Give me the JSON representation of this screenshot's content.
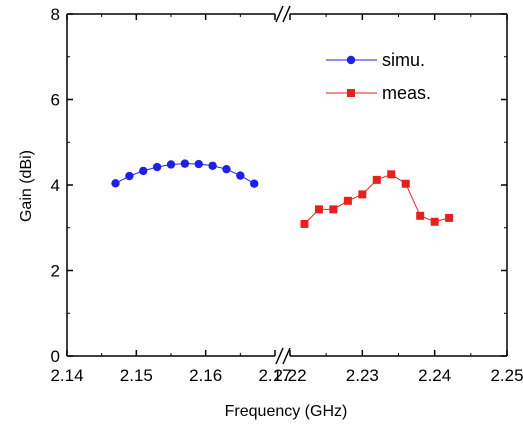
{
  "chart_data": {
    "type": "scatter",
    "xlabel": "Frequency (GHz)",
    "ylabel": "Gain (dBi)",
    "broken_x_axis": true,
    "segments": [
      {
        "xlim": [
          2.14,
          2.17
        ],
        "ticks": [
          "2.14",
          "2.15",
          "2.16",
          "2.17"
        ]
      },
      {
        "xlim": [
          2.22,
          2.25
        ],
        "ticks": [
          "2.22",
          "2.23",
          "2.24",
          "2.25"
        ]
      }
    ],
    "ylim": [
      0,
      8
    ],
    "yticks": [
      "0",
      "2",
      "4",
      "6",
      "8"
    ],
    "grid": false,
    "legend_position": "top-right",
    "series": [
      {
        "name": "simu.",
        "color": "#1f1fe6",
        "marker": "circle",
        "line": true,
        "points": [
          [
            2.147,
            4.04
          ],
          [
            2.149,
            4.21
          ],
          [
            2.151,
            4.33
          ],
          [
            2.153,
            4.42
          ],
          [
            2.155,
            4.48
          ],
          [
            2.157,
            4.5
          ],
          [
            2.159,
            4.49
          ],
          [
            2.161,
            4.45
          ],
          [
            2.163,
            4.37
          ],
          [
            2.165,
            4.22
          ],
          [
            2.167,
            4.03
          ]
        ]
      },
      {
        "name": "meas.",
        "color": "#e61f1f",
        "marker": "square",
        "line": true,
        "points": [
          [
            2.222,
            3.09
          ],
          [
            2.224,
            3.43
          ],
          [
            2.226,
            3.43
          ],
          [
            2.228,
            3.63
          ],
          [
            2.23,
            3.78
          ],
          [
            2.232,
            4.12
          ],
          [
            2.234,
            4.25
          ],
          [
            2.236,
            4.03
          ],
          [
            2.238,
            3.28
          ],
          [
            2.24,
            3.14
          ],
          [
            2.242,
            3.23
          ]
        ]
      }
    ]
  }
}
